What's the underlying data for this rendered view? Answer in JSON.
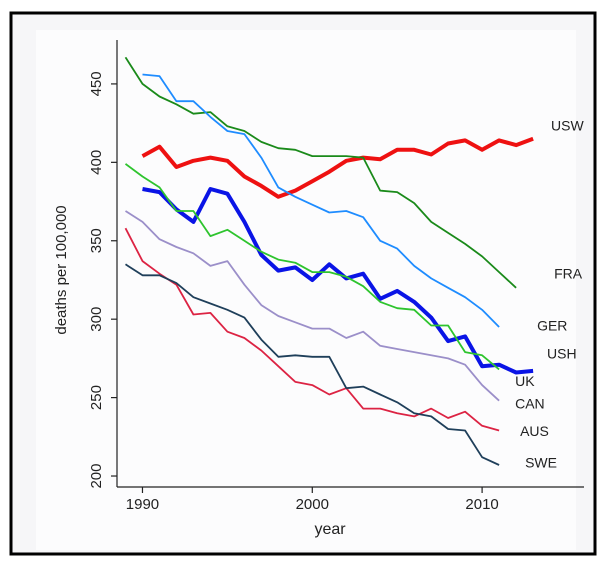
{
  "chart_data": {
    "type": "line",
    "x_label": "year",
    "y_label": "deaths per 100,000",
    "x": [
      1989,
      1990,
      1991,
      1992,
      1993,
      1994,
      1995,
      1996,
      1997,
      1998,
      1999,
      2000,
      2001,
      2002,
      2003,
      2004,
      2005,
      2006,
      2007,
      2008,
      2009,
      2010,
      2011,
      2012,
      2013
    ],
    "xlim": [
      1988.5,
      2016
    ],
    "xticks": [
      1990,
      2000,
      2010
    ],
    "ylim": [
      193,
      478
    ],
    "yticks": [
      200,
      250,
      300,
      350,
      400,
      450
    ],
    "series": [
      {
        "name": "USW",
        "color": "#ee1111",
        "values": [
          null,
          404,
          410,
          397,
          401,
          403,
          401,
          391,
          385,
          378,
          382,
          388,
          394,
          401,
          403,
          402,
          408,
          408,
          405,
          412,
          414,
          408,
          414,
          411,
          415
        ]
      },
      {
        "name": "FRA",
        "color": "#1a8a1a",
        "values": [
          467,
          450,
          442,
          437,
          431,
          432,
          423,
          420,
          413,
          409,
          408,
          404,
          404,
          404,
          403,
          382,
          381,
          374,
          362,
          355,
          348,
          340,
          330,
          320,
          null
        ]
      },
      {
        "name": "GER",
        "color": "#1e8cff",
        "values": [
          null,
          456,
          455,
          439,
          439,
          429,
          420,
          418,
          403,
          384,
          378,
          373,
          368,
          369,
          365,
          350,
          345,
          334,
          326,
          320,
          314,
          306,
          295,
          null,
          null
        ]
      },
      {
        "name": "USH",
        "color": "#0a14e6",
        "values": [
          null,
          383,
          381,
          370,
          362,
          383,
          380,
          362,
          341,
          331,
          333,
          325,
          335,
          326,
          329,
          313,
          318,
          311,
          301,
          286,
          289,
          270,
          271,
          266,
          267
        ]
      },
      {
        "name": "UK",
        "color": "#2ec42e",
        "values": [
          399,
          391,
          384,
          369,
          369,
          353,
          357,
          350,
          343,
          338,
          336,
          330,
          330,
          327,
          321,
          311,
          307,
          306,
          296,
          296,
          279,
          277,
          268,
          null,
          null
        ]
      },
      {
        "name": "CAN",
        "color": "#9b8fc9",
        "values": [
          369,
          362,
          351,
          346,
          342,
          334,
          337,
          322,
          309,
          302,
          298,
          294,
          294,
          288,
          292,
          283,
          281,
          279,
          277,
          275,
          271,
          258,
          248,
          null,
          null
        ]
      },
      {
        "name": "AUS",
        "color": "#dc2343",
        "values": [
          358,
          337,
          329,
          322,
          303,
          304,
          292,
          288,
          280,
          270,
          260,
          258,
          252,
          256,
          243,
          243,
          240,
          238,
          243,
          237,
          241,
          232,
          229,
          null,
          null
        ]
      },
      {
        "name": "SWE",
        "color": "#1f3f5a",
        "values": [
          335,
          328,
          328,
          323,
          314,
          310,
          306,
          301,
          287,
          276,
          277,
          276,
          276,
          256,
          257,
          252,
          247,
          240,
          238,
          230,
          229,
          212,
          207,
          null,
          null
        ]
      }
    ]
  }
}
